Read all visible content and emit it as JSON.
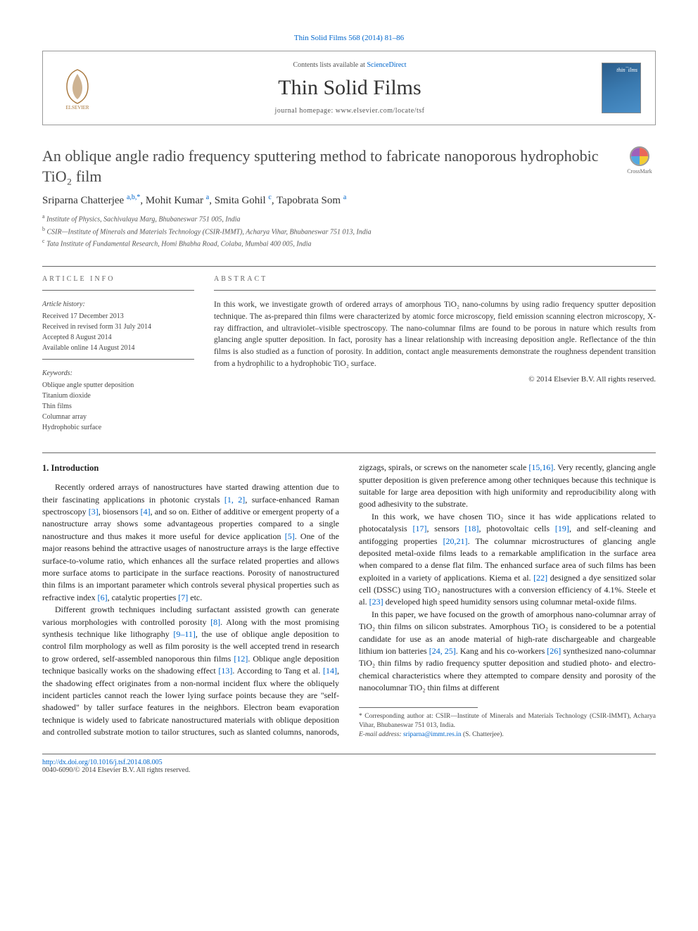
{
  "journal_ref_link": "Thin Solid Films 568 (2014) 81–86",
  "header": {
    "contents_prefix": "Contents lists available at ",
    "contents_link": "ScienceDirect",
    "journal_name": "Thin Solid Films",
    "homepage": "journal homepage: www.elsevier.com/locate/tsf",
    "elsevier_label": "ELSEVIER"
  },
  "title": "An oblique angle radio frequency sputtering method to fabricate nanoporous hydrophobic TiO₂ film",
  "crossmark_label": "CrossMark",
  "authors_html": "Sriparna Chatterjee <sup>a,b,*</sup>, Mohit Kumar <sup>a</sup>, Smita Gohil <sup>c</sup>, Tapobrata Som <sup>a</sup>",
  "affiliations": [
    {
      "sup": "a",
      "text": "Institute of Physics, Sachivalaya Marg, Bhubaneswar 751 005, India"
    },
    {
      "sup": "b",
      "text": "CSIR—Institute of Minerals and Materials Technology (CSIR-IMMT), Acharya Vihar, Bhubaneswar 751 013, India"
    },
    {
      "sup": "c",
      "text": "Tata Institute of Fundamental Research, Homi Bhabha Road, Colaba, Mumbai 400 005, India"
    }
  ],
  "article_info": {
    "label": "ARTICLE INFO",
    "history_label": "Article history:",
    "history": [
      "Received 17 December 2013",
      "Received in revised form 31 July 2014",
      "Accepted 8 August 2014",
      "Available online 14 August 2014"
    ],
    "keywords_label": "Keywords:",
    "keywords": [
      "Oblique angle sputter deposition",
      "Titanium dioxide",
      "Thin films",
      "Columnar array",
      "Hydrophobic surface"
    ]
  },
  "abstract": {
    "label": "ABSTRACT",
    "text": "In this work, we investigate growth of ordered arrays of amorphous TiO₂ nano-columns by using radio frequency sputter deposition technique. The as-prepared thin films were characterized by atomic force microscopy, field emission scanning electron microscopy, X-ray diffraction, and ultraviolet–visible spectroscopy. The nano-columnar films are found to be porous in nature which results from glancing angle sputter deposition. In fact, porosity has a linear relationship with increasing deposition angle. Reflectance of the thin films is also studied as a function of porosity. In addition, contact angle measurements demonstrate the roughness dependent transition from a hydrophilic to a hydrophobic TiO₂ surface.",
    "copyright": "© 2014 Elsevier B.V. All rights reserved."
  },
  "section1": {
    "heading": "1. Introduction",
    "p1_a": "Recently ordered arrays of nanostructures have started drawing attention due to their fascinating applications in photonic crystals ",
    "r1": "[1, 2]",
    "p1_b": ", surface-enhanced Raman spectroscopy ",
    "r2": "[3]",
    "p1_c": ", biosensors ",
    "r3": "[4]",
    "p1_d": ", and so on. Either of additive or emergent property of a nanostructure array shows some advantageous properties compared to a single nanostructure and thus makes it more useful for device application ",
    "r4": "[5]",
    "p1_e": ". One of the major reasons behind the attractive usages of nanostructure arrays is the large effective surface-to-volume ratio, which enhances all the surface related properties and allows more surface atoms to participate in the surface reactions. Porosity of nanostructured thin films is an important parameter which controls several physical properties such as refractive index ",
    "r5": "[6]",
    "p1_f": ", catalytic properties ",
    "r6": "[7]",
    "p1_g": " etc.",
    "p2_a": "Different growth techniques including surfactant assisted growth can generate various morphologies with controlled porosity ",
    "r7": "[8]",
    "p2_b": ". Along with the most promising synthesis technique like lithography ",
    "r8": "[9–11]",
    "p2_c": ", the use of oblique angle deposition to control film morphology as well as film porosity is the well accepted trend in research to grow ordered, self-assembled nanoporous thin films ",
    "r9": "[12]",
    "p2_d": ". Oblique angle deposition technique basically works on the shadowing effect ",
    "r10": "[13]",
    "p2_e": ". According to Tang et al. ",
    "r11": "[14]",
    "p2_f": ", the shadowing effect originates from a non-normal incident flux where the obliquely incident particles cannot reach the lower ",
    "p2_g": "lying surface points because they are \"self-shadowed\" by taller surface features in the neighbors. Electron beam evaporation technique is widely used to fabricate nanostructured materials with oblique deposition and controlled substrate motion to tailor structures, such as slanted columns, nanorods, zigzags, spirals, or screws on the nanometer scale ",
    "r12": "[15,16]",
    "p2_h": ". Very recently, glancing angle sputter deposition is given preference among other techniques because this technique is suitable for large area deposition with high uniformity and reproducibility along with good adhesivity to the substrate.",
    "p3_a": "In this work, we have chosen TiO₂ since it has wide applications related to photocatalysis ",
    "r13": "[17]",
    "p3_b": ", sensors ",
    "r14": "[18]",
    "p3_c": ", photovoltaic cells ",
    "r15": "[19]",
    "p3_d": ", and self-cleaning and antifogging properties ",
    "r16": "[20,21]",
    "p3_e": ". The columnar microstructures of glancing angle deposited metal-oxide films leads to a remarkable amplification in the surface area when compared to a dense flat film. The enhanced surface area of such films has been exploited in a variety of applications. Kiema et al. ",
    "r17": "[22]",
    "p3_f": " designed a dye sensitized solar cell (DSSC) using TiO₂ nanostructures with a conversion efficiency of 4.1%. Steele et al. ",
    "r18": "[23]",
    "p3_g": " developed high speed humidity sensors using columnar metal-oxide films.",
    "p4_a": "In this paper, we have focused on the growth of amorphous nano-columnar array of TiO₂ thin films on silicon substrates. Amorphous TiO₂ is considered to be a potential candidate for use as an anode material of high-rate dischargeable and chargeable lithium ion batteries ",
    "r19": "[24, 25]",
    "p4_b": ". Kang and his co-workers ",
    "r20": "[26]",
    "p4_c": " synthesized nano-columnar TiO₂ thin films by radio frequency sputter deposition and studied photo- and electro-chemical characteristics where they attempted to compare density and porosity of the nanocolumnar TiO₂ thin films at different"
  },
  "footnotes": {
    "corr": "* Corresponding author at: CSIR—Institute of Minerals and Materials Technology (CSIR-IMMT), Acharya Vihar, Bhubaneswar 751 013, India.",
    "email_label": "E-mail address: ",
    "email": "sriparna@immt.res.in",
    "email_suffix": " (S. Chatterjee)."
  },
  "doi": "http://dx.doi.org/10.1016/j.tsf.2014.08.005",
  "issn": "0040-6090/© 2014 Elsevier B.V. All rights reserved.",
  "colors": {
    "link": "#0066cc",
    "text": "#333333",
    "rule": "#666666"
  }
}
